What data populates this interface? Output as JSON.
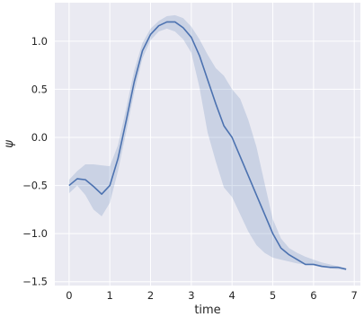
{
  "chart_data": {
    "type": "line",
    "title": "",
    "xlabel": "time",
    "ylabel": "ψ",
    "xlim": [
      -0.35,
      7.15
    ],
    "ylim": [
      -1.54,
      1.4
    ],
    "xticks": [
      0,
      1,
      2,
      3,
      4,
      5,
      6,
      7
    ],
    "yticks": [
      -1.5,
      -1.0,
      -0.5,
      0.0,
      0.5,
      1.0
    ],
    "ytick_labels": [
      "−1.5",
      "−1.0",
      "−0.5",
      "0.0",
      "0.5",
      "1.0"
    ],
    "grid": true,
    "colors": {
      "background": "#eaeaf2",
      "grid": "#ffffff",
      "line": "#4c72b0",
      "band": "#4c72b0"
    },
    "series": [
      {
        "x": [
          0.0,
          0.2,
          0.4,
          0.6,
          0.8,
          1.0,
          1.2,
          1.4,
          1.6,
          1.8,
          2.0,
          2.2,
          2.4,
          2.6,
          2.8,
          3.0,
          3.2,
          3.4,
          3.6,
          3.8,
          4.0,
          4.2,
          4.4,
          4.6,
          4.8,
          5.0,
          5.2,
          5.4,
          5.6,
          5.8,
          6.0,
          6.2,
          6.4,
          6.6,
          6.8
        ],
        "y": [
          -0.5,
          -0.43,
          -0.44,
          -0.51,
          -0.59,
          -0.5,
          -0.22,
          0.17,
          0.58,
          0.9,
          1.07,
          1.16,
          1.2,
          1.2,
          1.14,
          1.04,
          0.85,
          0.6,
          0.35,
          0.12,
          0.0,
          -0.2,
          -0.4,
          -0.6,
          -0.8,
          -1.0,
          -1.15,
          -1.22,
          -1.27,
          -1.32,
          -1.32,
          -1.34,
          -1.35,
          -1.35,
          -1.37
        ],
        "lower": [
          -0.58,
          -0.5,
          -0.6,
          -0.75,
          -0.82,
          -0.68,
          -0.35,
          0.05,
          0.47,
          0.82,
          1.01,
          1.1,
          1.13,
          1.1,
          1.02,
          0.88,
          0.52,
          0.05,
          -0.25,
          -0.52,
          -0.62,
          -0.8,
          -0.98,
          -1.12,
          -1.2,
          -1.25,
          -1.27,
          -1.29,
          -1.31,
          -1.32,
          -1.33,
          -1.35,
          -1.36,
          -1.37,
          -1.38
        ],
        "upper": [
          -0.44,
          -0.35,
          -0.28,
          -0.28,
          -0.29,
          -0.3,
          -0.08,
          0.3,
          0.7,
          0.98,
          1.13,
          1.21,
          1.26,
          1.27,
          1.24,
          1.15,
          1.02,
          0.86,
          0.72,
          0.64,
          0.5,
          0.4,
          0.18,
          -0.1,
          -0.48,
          -0.85,
          -1.05,
          -1.15,
          -1.2,
          -1.24,
          -1.27,
          -1.3,
          -1.32,
          -1.34,
          -1.36
        ]
      }
    ]
  }
}
